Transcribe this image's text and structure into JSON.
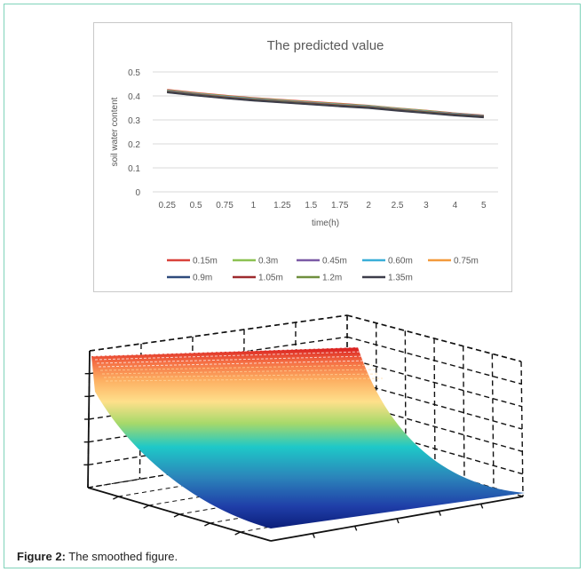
{
  "chart_data": [
    {
      "type": "line",
      "title": "The predicted value",
      "xlabel": "time(h)",
      "ylabel": "soil water content",
      "categories": [
        "0.25",
        "0.5",
        "0.75",
        "1",
        "1.25",
        "1.5",
        "1.75",
        "2",
        "2.5",
        "3",
        "4",
        "5"
      ],
      "y_ticks": [
        0,
        0.1,
        0.2,
        0.3,
        0.4,
        0.5
      ],
      "ylim": [
        0,
        0.5
      ],
      "grid": true,
      "legend_position": "bottom",
      "series": [
        {
          "name": "0.15m",
          "color": "#d9423b",
          "values": [
            0.425,
            0.412,
            0.401,
            0.391,
            0.383,
            0.375,
            0.367,
            0.359,
            0.348,
            0.338,
            0.327,
            0.318
          ]
        },
        {
          "name": "0.3m",
          "color": "#8cc152",
          "values": [
            0.423,
            0.41,
            0.399,
            0.389,
            0.381,
            0.373,
            0.365,
            0.358,
            0.347,
            0.337,
            0.326,
            0.317
          ]
        },
        {
          "name": "0.45m",
          "color": "#7b5aa6",
          "values": [
            0.421,
            0.408,
            0.397,
            0.387,
            0.379,
            0.371,
            0.363,
            0.356,
            0.345,
            0.335,
            0.325,
            0.316
          ]
        },
        {
          "name": "0.60m",
          "color": "#3aaed8",
          "values": [
            0.42,
            0.407,
            0.396,
            0.386,
            0.378,
            0.37,
            0.362,
            0.355,
            0.344,
            0.334,
            0.324,
            0.315
          ]
        },
        {
          "name": "0.75m",
          "color": "#f39a3c",
          "values": [
            0.419,
            0.406,
            0.395,
            0.385,
            0.377,
            0.369,
            0.361,
            0.354,
            0.343,
            0.333,
            0.323,
            0.314
          ]
        },
        {
          "name": "0.9m",
          "color": "#2f4b7c",
          "values": [
            0.418,
            0.405,
            0.394,
            0.384,
            0.376,
            0.368,
            0.36,
            0.353,
            0.342,
            0.332,
            0.322,
            0.314
          ]
        },
        {
          "name": "1.05m",
          "color": "#9e2b2f",
          "values": [
            0.417,
            0.404,
            0.393,
            0.383,
            0.375,
            0.367,
            0.359,
            0.352,
            0.341,
            0.331,
            0.321,
            0.313
          ]
        },
        {
          "name": "1.2m",
          "color": "#6f8f3e",
          "values": [
            0.416,
            0.403,
            0.392,
            0.382,
            0.374,
            0.366,
            0.358,
            0.351,
            0.34,
            0.33,
            0.32,
            0.312
          ]
        },
        {
          "name": "1.35m",
          "color": "#3d3d4a",
          "values": [
            0.415,
            0.402,
            0.391,
            0.381,
            0.373,
            0.365,
            0.357,
            0.35,
            0.339,
            0.329,
            0.319,
            0.311
          ]
        }
      ]
    },
    {
      "type": "surface",
      "title": "",
      "grid": true,
      "colormap": "jet",
      "grid_line_style": "dashed"
    }
  ],
  "caption": {
    "label": "Figure 2:",
    "text": " The smoothed figure."
  }
}
